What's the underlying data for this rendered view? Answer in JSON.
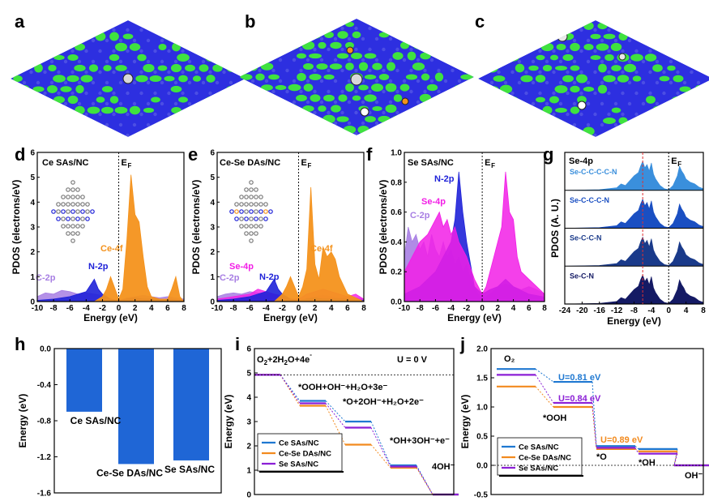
{
  "panel_labels": [
    "a",
    "b",
    "c",
    "d",
    "e",
    "f",
    "g",
    "h",
    "i",
    "j"
  ],
  "colors": {
    "ce": "#1f78d1",
    "cese": "#f28a1e",
    "se": "#8b1fd6",
    "green": "#3fe23f",
    "blue": "#1f22d8",
    "orange": "#f4921c",
    "violet": "#a77ee3",
    "magenta": "#f21ee6",
    "navy": "#1424a8"
  },
  "chart_data": [
    {
      "id": "d",
      "type": "area",
      "title": "Ce SAs/NC",
      "xlabel": "Energy (eV)",
      "ylabel": "PDOS (electrons/eV)",
      "xlim": [
        -10,
        8
      ],
      "ylim": [
        0,
        6
      ],
      "xticks": [
        "-10",
        "-8",
        "-6",
        "-4",
        "-2",
        "0",
        "2",
        "4",
        "6",
        "8"
      ],
      "yticks": [
        "0",
        "1",
        "2",
        "3",
        "4",
        "5",
        "6"
      ],
      "fermi_label": "E",
      "fermi_sub": "F",
      "series": [
        {
          "name": "C-2p",
          "x": [
            -10,
            -9,
            -8,
            -7,
            -6,
            -5,
            -4,
            -3,
            -2,
            -1,
            0,
            1,
            2,
            3,
            4,
            5,
            6,
            7,
            8
          ],
          "y": [
            0.2,
            0.35,
            0.3,
            0.45,
            0.4,
            0.3,
            0.35,
            0.3,
            0.25,
            0.1,
            0.05,
            0.15,
            0.2,
            0.25,
            0.2,
            0.15,
            0.2,
            0.15,
            0.1
          ]
        },
        {
          "name": "N-2p",
          "x": [
            -10,
            -8,
            -6,
            -5,
            -4,
            -3,
            -2.5,
            -2,
            -1.5,
            -1,
            0,
            1,
            2,
            3,
            4,
            6,
            8
          ],
          "y": [
            0.05,
            0.1,
            0.2,
            0.3,
            0.4,
            0.9,
            0.5,
            0.3,
            0.2,
            0.1,
            0.05,
            0.1,
            0.15,
            0.1,
            0.1,
            0.1,
            0.05
          ]
        },
        {
          "name": "Ce-4f",
          "x": [
            -10,
            -3,
            -2,
            -1.5,
            -1,
            0,
            0.5,
            1,
            1.5,
            2,
            2.5,
            3,
            3.5,
            4,
            5,
            6,
            6.5,
            7,
            7.5,
            8
          ],
          "y": [
            0,
            0,
            0.2,
            0.5,
            1.0,
            0.1,
            0.5,
            2.5,
            5.1,
            3.5,
            3.2,
            1.8,
            0.6,
            0.2,
            0.1,
            0.1,
            0.5,
            1.0,
            0.2,
            0
          ]
        }
      ]
    },
    {
      "id": "e",
      "type": "area",
      "title": "Ce-Se DAs/NC",
      "xlabel": "Energy (eV)",
      "ylabel": "PDOS (electrons/eV)",
      "xlim": [
        -10,
        8
      ],
      "ylim": [
        0,
        6
      ],
      "xticks": [
        "-10",
        "-8",
        "-6",
        "-4",
        "-2",
        "0",
        "2",
        "4",
        "6",
        "8"
      ],
      "yticks": [
        "0",
        "1",
        "2",
        "3",
        "4",
        "5",
        "6"
      ],
      "fermi_label": "E",
      "fermi_sub": "F",
      "series": [
        {
          "name": "C-2p",
          "x": [
            -10,
            -9,
            -8,
            -7,
            -6,
            -5,
            -4,
            -3,
            -2,
            -1,
            0,
            1,
            2,
            3,
            4,
            5,
            6,
            7,
            8
          ],
          "y": [
            0.2,
            0.3,
            0.35,
            0.3,
            0.4,
            0.35,
            0.3,
            0.3,
            0.25,
            0.1,
            0.05,
            0.15,
            0.2,
            0.25,
            0.2,
            0.15,
            0.2,
            0.15,
            0.1
          ]
        },
        {
          "name": "Se-4p",
          "x": [
            -10,
            -8,
            -6,
            -5,
            -4,
            -3,
            -2,
            -1,
            0,
            1,
            2,
            3,
            4,
            5,
            6,
            7,
            8
          ],
          "y": [
            0.1,
            0.2,
            0.3,
            0.5,
            0.4,
            0.3,
            0.2,
            0.1,
            0.1,
            0.3,
            0.4,
            0.5,
            0.4,
            0.3,
            0.2,
            0.3,
            0.1
          ]
        },
        {
          "name": "N-2p",
          "x": [
            -10,
            -8,
            -6,
            -5,
            -4,
            -3,
            -2.5,
            -2,
            -1.5,
            -1,
            0,
            1,
            2,
            3,
            4,
            6,
            8
          ],
          "y": [
            0.05,
            0.1,
            0.2,
            0.3,
            0.4,
            0.9,
            0.5,
            0.3,
            0.2,
            0.1,
            0.05,
            0.1,
            0.15,
            0.1,
            0.1,
            0.1,
            0.05
          ]
        },
        {
          "name": "Ce-4f",
          "x": [
            -10,
            -3,
            -2,
            -1.5,
            -1,
            0,
            0.5,
            1,
            1.5,
            2,
            2.5,
            3,
            3.5,
            4,
            4.5,
            5,
            6,
            8
          ],
          "y": [
            0,
            0,
            0.3,
            0.6,
            1.0,
            0.2,
            0.6,
            1.3,
            4.6,
            1.5,
            0.9,
            2.2,
            1.8,
            2.0,
            1.7,
            1.0,
            0.3,
            0
          ]
        }
      ]
    },
    {
      "id": "f",
      "type": "area",
      "title": "Se SAs/NC",
      "xlabel": "Energy (eV)",
      "ylabel": "PDOS (electrons/eV)",
      "xlim": [
        -10,
        8
      ],
      "ylim": [
        0,
        1.0
      ],
      "xticks": [
        "-10",
        "-8",
        "-6",
        "-4",
        "-2",
        "0",
        "2",
        "4",
        "6",
        "8"
      ],
      "yticks": [
        "0.0",
        "0.2",
        "0.4",
        "0.6",
        "0.8",
        "1.0"
      ],
      "fermi_label": "E",
      "fermi_sub": "F",
      "series": [
        {
          "name": "C-2p",
          "x": [
            -10,
            -9.5,
            -9,
            -8.5,
            -8,
            -7.5,
            -7,
            -6.5,
            -6,
            -5.5,
            -5,
            -4.5,
            -4,
            -3.5,
            -3,
            -2.5,
            -2,
            -1.5,
            -1,
            -0.5,
            0,
            1,
            2,
            3,
            4,
            5,
            6,
            7,
            8
          ],
          "y": [
            0.3,
            0.5,
            0.4,
            0.45,
            0.35,
            0.4,
            0.3,
            0.45,
            0.35,
            0.3,
            0.4,
            0.3,
            0.35,
            0.25,
            0.3,
            0.2,
            0.25,
            0.15,
            0.1,
            0.05,
            0.02,
            0.05,
            0.1,
            0.12,
            0.1,
            0.08,
            0.1,
            0.08,
            0.05
          ]
        },
        {
          "name": "N-2p",
          "x": [
            -10,
            -8,
            -6,
            -5,
            -4,
            -3.5,
            -3,
            -2.5,
            -2,
            -1.5,
            -1,
            0,
            1,
            2,
            3,
            4,
            6,
            8
          ],
          "y": [
            0.05,
            0.1,
            0.2,
            0.3,
            0.4,
            0.55,
            0.87,
            0.6,
            0.4,
            0.25,
            0.1,
            0.05,
            0.08,
            0.1,
            0.15,
            0.1,
            0.05,
            0.03
          ]
        },
        {
          "name": "Se-4p",
          "x": [
            -10,
            -9,
            -8,
            -7,
            -6,
            -5.5,
            -5,
            -4.5,
            -4,
            -3.5,
            -3,
            -2,
            -1,
            0,
            0.5,
            1,
            1.5,
            2,
            2.5,
            3,
            3.5,
            4,
            4.5,
            5,
            6,
            7,
            8
          ],
          "y": [
            0.2,
            0.3,
            0.4,
            0.45,
            0.55,
            0.6,
            0.5,
            0.55,
            0.45,
            0.5,
            0.4,
            0.3,
            0.15,
            0.05,
            0.1,
            0.2,
            0.3,
            0.4,
            0.5,
            0.87,
            0.6,
            0.55,
            0.3,
            0.2,
            0.15,
            0.1,
            0.05
          ]
        }
      ]
    },
    {
      "id": "g",
      "type": "area",
      "title": "Se-4p",
      "xlabel": "Energy (eV)",
      "ylabel": "PDOS (A. U.)",
      "xlim": [
        -24,
        8
      ],
      "xticks": [
        "-24",
        "-20",
        "-16",
        "-12",
        "-8",
        "-4",
        "0",
        "4",
        "8"
      ],
      "fermi_label": "E",
      "fermi_sub": "F",
      "rows": [
        {
          "name": "Se-C-C-C-C-N",
          "color": "#3a8fdc"
        },
        {
          "name": "Se-C-C-C-N",
          "color": "#1a4fc2"
        },
        {
          "name": "Se-C-C-N",
          "color": "#1a3a8a"
        },
        {
          "name": "Se-C-N",
          "color": "#141a64"
        }
      ]
    },
    {
      "id": "h",
      "type": "bar",
      "ylabel": "Energy (eV)",
      "ylim": [
        -1.6,
        0.0
      ],
      "yticks": [
        "0.0",
        "-0.4",
        "-0.8",
        "-1.2",
        "-1.6"
      ],
      "categories": [
        "Ce SAs/NC",
        "Ce-Se DAs/NC",
        "Se SAs/NC"
      ],
      "values": [
        -0.7,
        -1.28,
        -1.24
      ]
    },
    {
      "id": "i",
      "type": "line",
      "xlabel": "",
      "ylabel": "Energy (eV)",
      "ylim": [
        0,
        6
      ],
      "yticks": [
        "0",
        "1",
        "2",
        "3",
        "4",
        "5",
        "6"
      ],
      "condition": "U = 0 V",
      "steps": [
        "O2+2H2O+4e-",
        "*OOH+OH-+H2O+3e-",
        "*O+2OH-+H2O+2e-",
        "*OH+3OH-+e-",
        "4OH-"
      ],
      "step_labels": {
        "s0": {
          "main": "O",
          "sub1": "2",
          "mid": "+2H",
          "sub2": "2",
          "end": "O+4e",
          "sup": "-"
        },
        "s1": "*OOH+OH⁻+H₂O+3e⁻",
        "s2": "*O+2OH⁻+H₂O+2e⁻",
        "s3": "*OH+3OH⁻+e⁻",
        "s4": "4OH⁻"
      },
      "series": [
        {
          "name": "Ce SAs/NC",
          "values": [
            4.92,
            3.85,
            3.0,
            1.2,
            0.0
          ]
        },
        {
          "name": "Ce-Se DAs/NC",
          "values": [
            4.92,
            3.65,
            2.05,
            1.1,
            0.0
          ]
        },
        {
          "name": "Se SAs/NC",
          "values": [
            4.92,
            3.75,
            2.75,
            1.15,
            0.0
          ]
        }
      ]
    },
    {
      "id": "j",
      "type": "line",
      "ylabel": "Energy (eV)",
      "ylim": [
        -0.5,
        2.0
      ],
      "yticks": [
        "-0.5",
        "0.0",
        "0.5",
        "1.0",
        "1.5",
        "2.0"
      ],
      "steps": [
        "O2",
        "*OOH",
        "*O",
        "*OH",
        "OH-"
      ],
      "step_labels": {
        "s0": "O₂",
        "s1": "*OOH",
        "s2": "*O",
        "s3": "*OH",
        "s4": "OH⁻"
      },
      "annotations": [
        "U=0.81 eV",
        "U=0.84 eV",
        "U=0.89 eV"
      ],
      "series": [
        {
          "name": "Ce SAs/NC",
          "values": [
            1.65,
            1.43,
            0.33,
            0.28,
            0.0
          ]
        },
        {
          "name": "Ce-Se DAs/NC",
          "values": [
            1.35,
            1.0,
            0.28,
            0.24,
            0.0
          ]
        },
        {
          "name": "Se SAs/NC",
          "values": [
            1.55,
            1.07,
            0.3,
            0.2,
            0.0
          ]
        }
      ]
    }
  ]
}
